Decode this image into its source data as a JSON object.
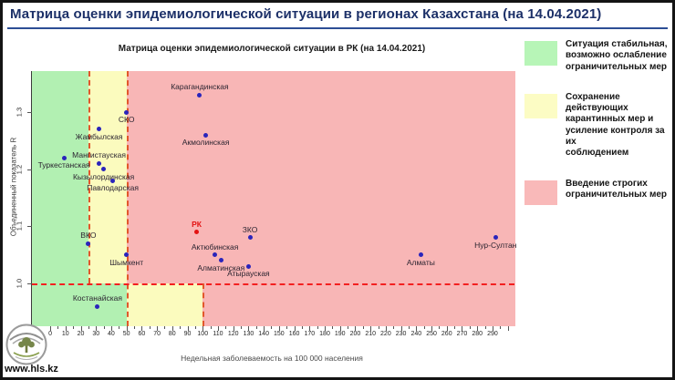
{
  "page": {
    "title": "Матрица оценки эпидемиологической ситуации в регионах Казахстана (на 14.04.2021)",
    "accent_color": "#2c4e95",
    "footer_url": "www.hls.kz",
    "footer_logo_icon": "tree-emblem-icon"
  },
  "legend": {
    "items": [
      {
        "color": "#b7f5b7",
        "status": "green",
        "lines": [
          "Ситуация стабильная,",
          "возможно ослабление",
          "ограничительных мер"
        ]
      },
      {
        "color": "#fcfcc4",
        "status": "yellow",
        "lines": [
          "Сохранение действующих",
          "карантинных мер и",
          "усиление контроля за их",
          "соблюдением"
        ]
      },
      {
        "color": "#f9b9b9",
        "status": "red",
        "lines": [
          "Введение строгих",
          "ограничительных мер"
        ]
      }
    ]
  },
  "chart_data": {
    "type": "scatter",
    "title": "Матрица оценки эпидемиологической ситуации в РК (на 14.04.2021)",
    "xlabel": "Недельная заболеваемость на 100 000 населения",
    "ylabel": "Объединенный показатель R",
    "xlim": [
      -12,
      305
    ],
    "ylim": [
      0.925,
      1.372
    ],
    "x_tick_step_major": 10,
    "x_tick_step_minor": 5,
    "x_tick_label_max": 290,
    "y_ticks": [
      1.0,
      1.1,
      1.2,
      1.3
    ],
    "grid": false,
    "legend_position": "right",
    "threshold_r": 1.0,
    "zones": {
      "above_r1": {
        "green_max_incidence": 25,
        "yellow_max_incidence": 50
      },
      "below_r1": {
        "green_max_incidence": 50,
        "yellow_max_incidence": 100
      }
    },
    "colors": {
      "green_zone": "#b2f0b2",
      "yellow_zone": "#fbfbbe",
      "red_zone": "#f8b6b6",
      "point": "#2a24bb",
      "highlight_point": "#e31212",
      "dashed_vertical": "#e2572b",
      "dashed_horizontal": "#f32020"
    },
    "points": [
      {
        "name": "Карагандинская",
        "x": 98,
        "r": 1.33,
        "lp": "above"
      },
      {
        "name": "СКО",
        "x": 50,
        "r": 1.3,
        "lp": "below"
      },
      {
        "name": "Жамбылская",
        "x": 32,
        "r": 1.27,
        "lp": "below"
      },
      {
        "name": "Акмолинская",
        "x": 102,
        "r": 1.26,
        "lp": "below"
      },
      {
        "name": "Туркестанская",
        "x": 9,
        "r": 1.22,
        "lp": "below"
      },
      {
        "name": "Мангистауская",
        "x": 32,
        "r": 1.21,
        "lp": "above"
      },
      {
        "name": "Кызылординская",
        "x": 35,
        "r": 1.2,
        "lp": "below"
      },
      {
        "name": "Павлодарская",
        "x": 41,
        "r": 1.18,
        "lp": "below"
      },
      {
        "name": "РК",
        "x": 96,
        "r": 1.09,
        "lp": "above",
        "highlight": true
      },
      {
        "name": "ЗКО",
        "x": 131,
        "r": 1.08,
        "lp": "above"
      },
      {
        "name": "Нур-Султан",
        "x": 292,
        "r": 1.08,
        "lp": "below"
      },
      {
        "name": "ВКО",
        "x": 25,
        "r": 1.07,
        "lp": "above"
      },
      {
        "name": "Актюбинская",
        "x": 108,
        "r": 1.05,
        "lp": "above"
      },
      {
        "name": "Шымкент",
        "x": 50,
        "r": 1.05,
        "lp": "below"
      },
      {
        "name": "Алматы",
        "x": 243,
        "r": 1.05,
        "lp": "below"
      },
      {
        "name": "Алматинская",
        "x": 112,
        "r": 1.04,
        "lp": "below"
      },
      {
        "name": "Атырауская",
        "x": 130,
        "r": 1.03,
        "lp": "below"
      },
      {
        "name": "Костанайская",
        "x": 31,
        "r": 0.96,
        "lp": "above"
      }
    ]
  }
}
